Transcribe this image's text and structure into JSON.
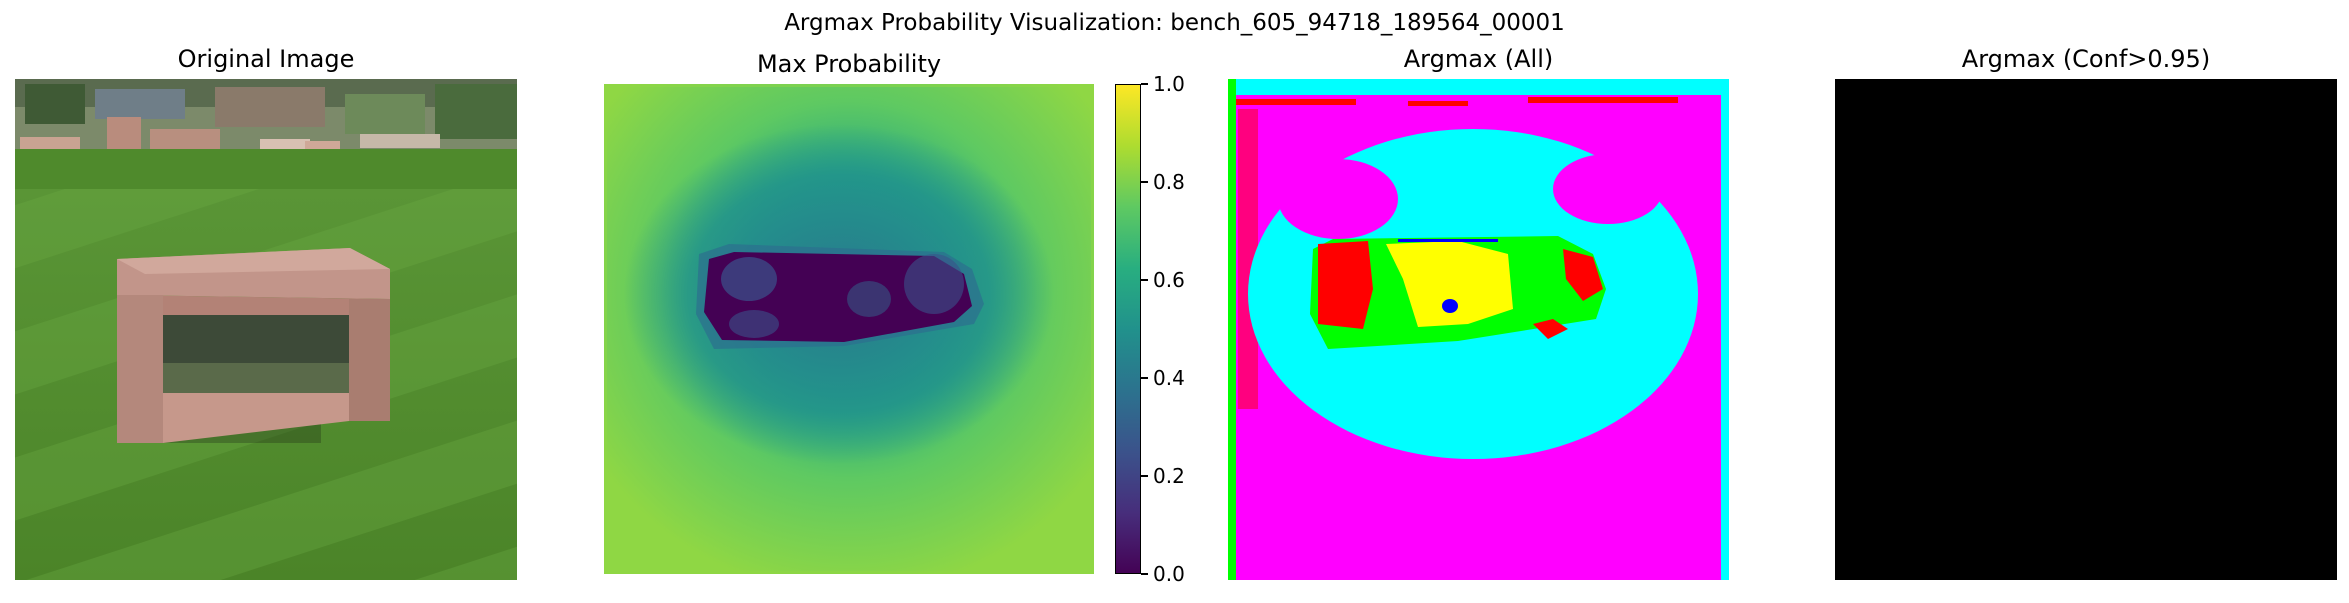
{
  "figure": {
    "title": "Argmax Probability Visualization: bench_605_94718_189564_00001"
  },
  "panels": {
    "original": {
      "title": "Original Image"
    },
    "maxprob": {
      "title": "Max Probability"
    },
    "argmax_all": {
      "title": "Argmax (All)"
    },
    "argmax_conf": {
      "title": "Argmax (Conf>0.95)"
    }
  },
  "chart_data": [
    {
      "type": "image",
      "title": "Original Image",
      "content": "photo of a stone bench on a striped lawn"
    },
    {
      "type": "heatmap",
      "title": "Max Probability",
      "colormap": "viridis",
      "colorbar": {
        "range": [
          0.0,
          1.0
        ],
        "ticks": [
          "0.0",
          "0.2",
          "0.4",
          "0.6",
          "0.8",
          "1.0"
        ]
      },
      "description": "low values (dark purple) over the bench region, medium teal around it, high (yellow-green) near edges"
    },
    {
      "type": "heatmap",
      "title": "Argmax (All)",
      "colors": [
        "#ff00ff",
        "#00ffff",
        "#00ff00",
        "#ffff00",
        "#ff0000",
        "#0000ff"
      ]
    },
    {
      "type": "heatmap",
      "title": "Argmax (Conf>0.95)",
      "fill": "#000000"
    }
  ]
}
